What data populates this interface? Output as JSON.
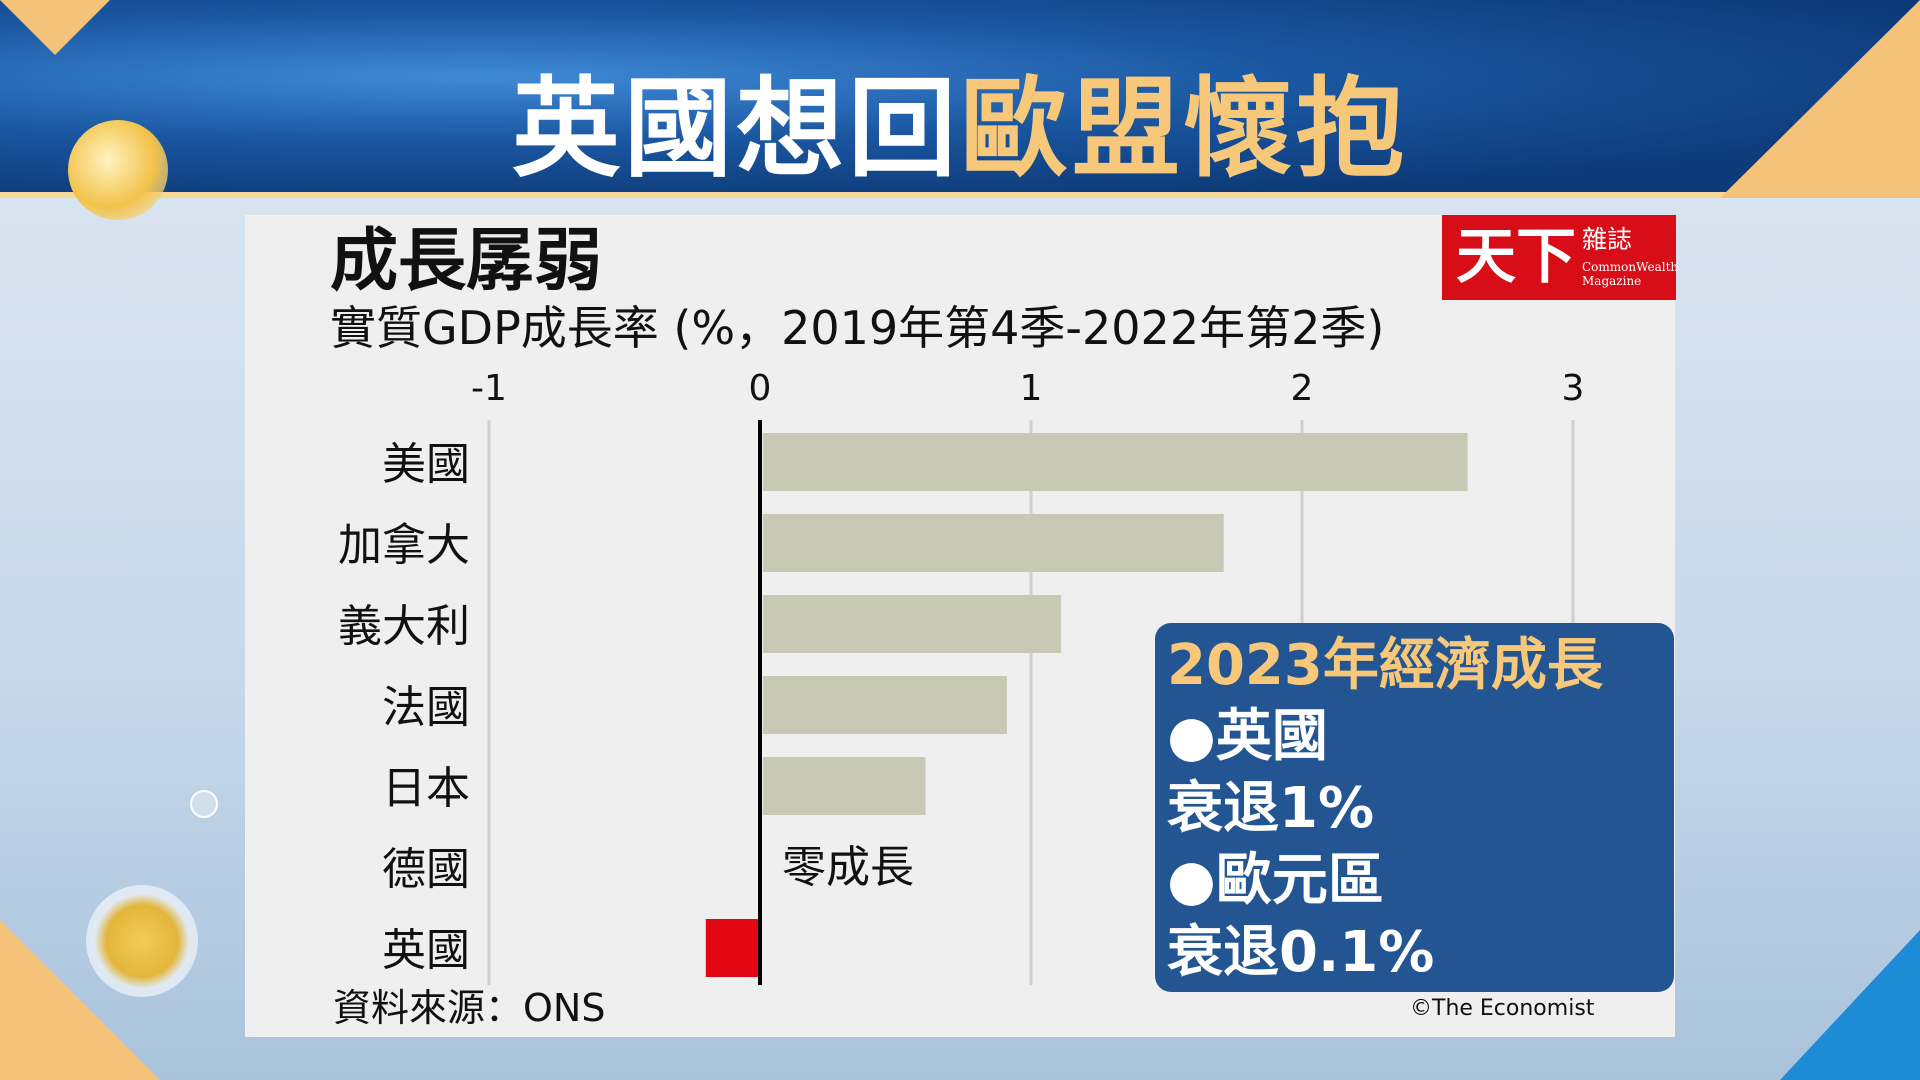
{
  "headline": {
    "part1": "英國想回",
    "part2": "歐盟懷抱"
  },
  "logo": {
    "mark": "天下",
    "name_zh": "雜誌",
    "name_en_1": "CommonWealth",
    "name_en_2": "Magazine"
  },
  "colors": {
    "bar": "#c8c9b4",
    "highlight_bar": "#e30613",
    "banner": "#1a56a0",
    "accent": "#f7c879",
    "info_box": "#225592"
  },
  "chart_data": {
    "type": "bar",
    "orientation": "horizontal",
    "title": "成長孱弱",
    "subtitle": "實質GDP成長率 (%，2019年第4季-2022年第2季)",
    "categories": [
      "美國",
      "加拿大",
      "義大利",
      "法國",
      "日本",
      "德國",
      "英國"
    ],
    "values": [
      2.6,
      1.7,
      1.1,
      0.9,
      0.6,
      0.0,
      -0.2
    ],
    "xlim": [
      -1,
      3
    ],
    "xticks": [
      "-1",
      "0",
      "1",
      "2",
      "3"
    ],
    "grid": true,
    "annotation": "零成長",
    "source": "資料來源：ONS",
    "credit": "©The Economist"
  },
  "info_box": {
    "heading": "2023年經濟成長",
    "lines": [
      "●英國",
      "衰退1%",
      "●歐元區",
      "衰退0.1%"
    ]
  }
}
